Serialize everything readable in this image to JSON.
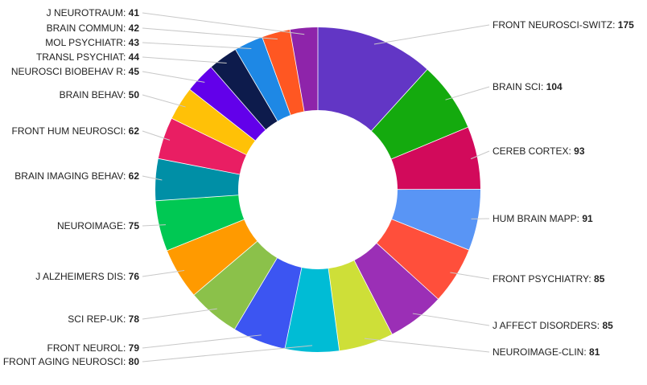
{
  "chart_data": {
    "type": "pie",
    "donut": true,
    "title": "",
    "legend": "none",
    "slices": [
      {
        "label": "FRONT NEUROSCI-SWITZ",
        "value": 175,
        "color": "#6236c5"
      },
      {
        "label": "BRAIN SCI",
        "value": 104,
        "color": "#14aa0e"
      },
      {
        "label": "CEREB CORTEX",
        "value": 93,
        "color": "#d20a5b"
      },
      {
        "label": "HUM BRAIN MAPP",
        "value": 91,
        "color": "#5995f5"
      },
      {
        "label": "FRONT PSYCHIATRY",
        "value": 85,
        "color": "#ff4f3b"
      },
      {
        "label": "J AFFECT DISORDERS",
        "value": 85,
        "color": "#9b2fb6"
      },
      {
        "label": "NEUROIMAGE-CLIN",
        "value": 81,
        "color": "#cedf38"
      },
      {
        "label": "FRONT AGING NEUROSCI",
        "value": 80,
        "color": "#00bcd5"
      },
      {
        "label": "FRONT NEUROL",
        "value": 79,
        "color": "#3c55f2"
      },
      {
        "label": "SCI REP-UK",
        "value": 78,
        "color": "#8bc14a"
      },
      {
        "label": "J ALZHEIMERS DIS",
        "value": 76,
        "color": "#ff9a00"
      },
      {
        "label": "NEUROIMAGE",
        "value": 75,
        "color": "#00c853"
      },
      {
        "label": "BRAIN IMAGING BEHAV",
        "value": 62,
        "color": "#008fa6"
      },
      {
        "label": "FRONT HUM NEUROSCI",
        "value": 62,
        "color": "#e91e63"
      },
      {
        "label": "BRAIN BEHAV",
        "value": 50,
        "color": "#ffc107"
      },
      {
        "label": "NEUROSCI BIOBEHAV R",
        "value": 45,
        "color": "#6200ea"
      },
      {
        "label": "TRANSL PSYCHIAT",
        "value": 44,
        "color": "#0d1b4c"
      },
      {
        "label": "MOL PSYCHIATR",
        "value": 43,
        "color": "#1e88e5"
      },
      {
        "label": "BRAIN COMMUN",
        "value": 42,
        "color": "#ff5722"
      },
      {
        "label": "J NEUROTRAUM",
        "value": 41,
        "color": "#8e24aa"
      }
    ]
  }
}
